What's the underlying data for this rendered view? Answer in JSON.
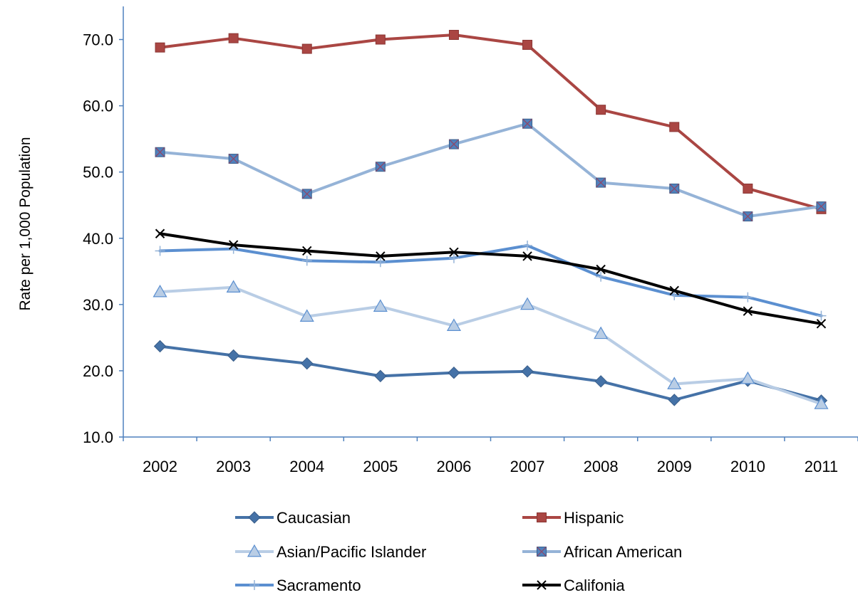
{
  "chart_data": {
    "type": "line",
    "title": "",
    "xlabel": "",
    "ylabel": "Rate per 1,000 Population",
    "ylim": [
      10,
      75
    ],
    "yticks": [
      "10.0",
      "20.0",
      "30.0",
      "40.0",
      "50.0",
      "60.0",
      "70.0"
    ],
    "categories": [
      "2002",
      "2003",
      "2004",
      "2005",
      "2006",
      "2007",
      "2008",
      "2009",
      "2010",
      "2011"
    ],
    "grid": false,
    "legend_position": "bottom",
    "series": [
      {
        "name": "Caucasian",
        "color": "#4572A7",
        "marker": "diamond",
        "values": [
          23.7,
          22.3,
          21.1,
          19.2,
          19.7,
          19.9,
          18.4,
          15.6,
          18.5,
          15.5
        ]
      },
      {
        "name": "Hispanic",
        "color": "#AA4643",
        "marker": "square",
        "values": [
          68.8,
          70.2,
          68.6,
          70.0,
          70.7,
          69.2,
          59.4,
          56.8,
          47.5,
          44.4
        ]
      },
      {
        "name": "Asian/Pacific Islander",
        "color": "#B9CDE5",
        "marker": "triangle",
        "values": [
          31.9,
          32.6,
          28.2,
          29.7,
          26.8,
          30.0,
          25.6,
          18.0,
          18.8,
          15.0
        ]
      },
      {
        "name": "African American",
        "color": "#95B3D7",
        "marker": "square-x",
        "values": [
          53.0,
          52.0,
          46.7,
          50.8,
          54.2,
          57.3,
          48.4,
          47.5,
          43.3,
          44.8
        ]
      },
      {
        "name": "Sacramento",
        "color": "#5B8FD0",
        "marker": "plus",
        "values": [
          38.1,
          38.4,
          36.6,
          36.4,
          37.0,
          38.9,
          34.2,
          31.4,
          31.1,
          28.3
        ]
      },
      {
        "name": "Califonia",
        "color": "#000000",
        "marker": "x",
        "values": [
          40.7,
          39.0,
          38.1,
          37.3,
          37.9,
          37.3,
          35.3,
          32.1,
          29.0,
          27.1
        ]
      }
    ]
  }
}
